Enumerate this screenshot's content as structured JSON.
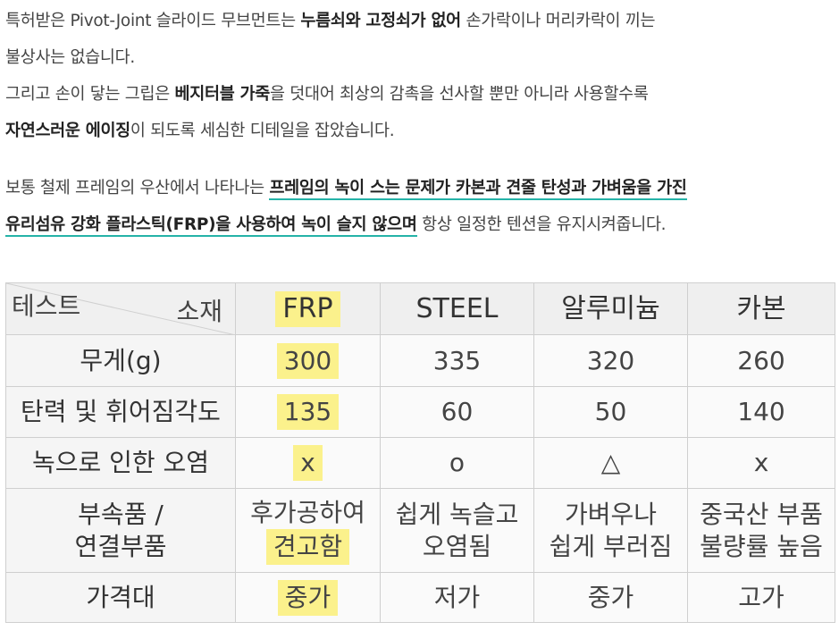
{
  "para1": {
    "l1_a": "특허받은 Pivot-Joint 슬라이드 무브먼트는 ",
    "l1_b": "누름쇠와 고정쇠가 없어",
    "l1_c": " 손가락이나 머리카락이 끼는",
    "l2": "불상사는 없습니다.",
    "l3_a": "그리고 손이 닿는 그립은 ",
    "l3_b": "베지터블 가죽",
    "l3_c": "을 덧대어 최상의 감촉을 선사할 뿐만 아니라 사용할수록",
    "l4_a": "자연스러운 에이징",
    "l4_b": "이 되도록 세심한 디테일을 잡았습니다."
  },
  "para2": {
    "l1_a": "보통 철제 프레임의 우산에서 나타나는 ",
    "l1_b": "프레임의 녹이 스는 문제가 카본과 견줄 탄성과 가벼움을 가진",
    "l2_a": "유리섬유 강화 플라스틱(FRP)을 사용하여 녹이 슬지 않으며",
    "l2_b": " 항상 일정한 텐션을 유지시켜줍니다."
  },
  "table": {
    "corner_test": "테스트",
    "corner_material": "소재",
    "columns": [
      "FRP",
      "STEEL",
      "알루미늄",
      "카본"
    ],
    "rows": [
      {
        "label": "무게(g)",
        "cells": [
          "300",
          "335",
          "320",
          "260"
        ]
      },
      {
        "label": "탄력 및 휘어짐각도",
        "cells": [
          "135",
          "60",
          "50",
          "140"
        ]
      },
      {
        "label": "녹으로 인한 오염",
        "cells": [
          "x",
          "o",
          "△",
          "x"
        ]
      },
      {
        "label_l1": "부속품 /",
        "label_l2": "연결부품",
        "cells_l1": [
          "후가공하여",
          "쉽게 녹슬고",
          "가벼우나",
          "중국산 부품"
        ],
        "cells_l2": [
          "견고함",
          "오염됨",
          "쉽게 부러짐",
          "불량률 높음"
        ]
      },
      {
        "label": "가격대",
        "cells": [
          "중가",
          "저가",
          "중가",
          "고가"
        ]
      }
    ]
  },
  "colors": {
    "highlight": "#fbf18c",
    "underline": "#25b3a8"
  }
}
